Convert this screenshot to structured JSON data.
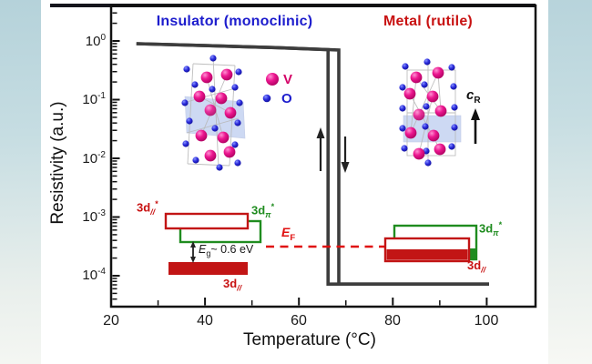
{
  "titles": {
    "insulator": "Insulator (monoclinic)",
    "metal": "Metal (rutile)"
  },
  "axes": {
    "x": {
      "label": "Temperature (°C)",
      "ticks": [
        "20",
        "40",
        "60",
        "80",
        "100"
      ]
    },
    "y": {
      "label": "Resistivity (a.u.)",
      "tick_base": "10",
      "tick_exponents": [
        "0",
        "-1",
        "-2",
        "-3",
        "-4"
      ]
    }
  },
  "legend": {
    "v": "V",
    "o": "O"
  },
  "annotations": {
    "e_f": {
      "base": "E",
      "sub": "F"
    },
    "e_g": {
      "base": "E",
      "sub": "g",
      "rest": "~ 0.6 eV"
    },
    "c_r": {
      "base": "c",
      "sub": "R"
    },
    "bands": {
      "ins_d_parallel_star": {
        "base": "3d",
        "sub": "//",
        "sup": "*"
      },
      "ins_d_pi_star": {
        "base": "3d",
        "sub": "π",
        "sup": "*"
      },
      "ins_d_parallel": {
        "base": "3d",
        "sub": "//"
      },
      "met_d_pi_star": {
        "base": "3d",
        "sub": "π",
        "sup": "*"
      },
      "met_d_parallel": {
        "base": "3d",
        "sub": "//"
      }
    }
  },
  "colors": {
    "curve": "#3d3d3d",
    "insulator_title": "#1c1ccd",
    "metal_title": "#c81212",
    "band_red": "#c21515",
    "band_green": "#1f8c1f",
    "fermi_red": "#e01010",
    "v_atom": "#e81a8f",
    "o_atom": "#2323cc"
  },
  "chart_data": {
    "type": "line",
    "title": "",
    "xlabel": "Temperature (°C)",
    "ylabel": "Resistivity (a.u.)",
    "x_range": [
      20,
      110
    ],
    "y_scale": "log",
    "y_range": [
      3e-05,
      2
    ],
    "x_ticks": [
      20,
      40,
      60,
      80,
      100
    ],
    "x_minor_ticks": [
      30,
      50,
      70,
      90
    ],
    "y_ticks": [
      1,
      0.1,
      0.01,
      0.001,
      0.0001
    ],
    "grid": false,
    "legend_position": "upper-left-inside",
    "series": [
      {
        "name": "heating (down arrow)",
        "points": [
          [
            25.4,
            0.9
          ],
          [
            40,
            0.835
          ],
          [
            55,
            0.77
          ],
          [
            68.5,
            0.7
          ],
          [
            68.5,
            7.2e-05
          ],
          [
            100.5,
            7.2e-05
          ]
        ]
      },
      {
        "name": "cooling (up arrow)",
        "points": [
          [
            100.5,
            7.2e-05
          ],
          [
            66.2,
            7.2e-05
          ],
          [
            66.2,
            0.71
          ],
          [
            55,
            0.77
          ],
          [
            40,
            0.835
          ],
          [
            25.4,
            0.9
          ]
        ]
      }
    ],
    "transition": {
      "heating_c": 68.5,
      "cooling_c": 66.2,
      "energy_gap_ev": 0.6
    },
    "annotations": [
      "Insulator (monoclinic)",
      "Metal (rutile)",
      "V",
      "O",
      "3d//*",
      "3dπ*",
      "3d//",
      "Eg~ 0.6 eV",
      "EF",
      "cR"
    ]
  }
}
